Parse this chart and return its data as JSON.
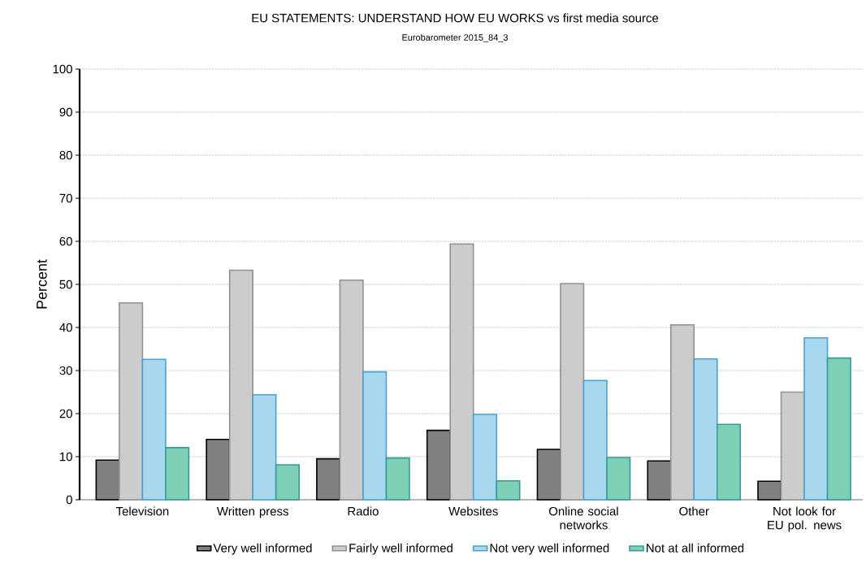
{
  "chart_data": {
    "type": "bar",
    "title": "EU STATEMENTS: UNDERSTAND HOW EU WORKS vs first media source",
    "subtitle": "Eurobarometer 2015_84_3",
    "ylabel": "Percent",
    "categories": [
      "Television",
      "Written press",
      "Radio",
      "Websites",
      "Online social networks",
      "Other",
      "Not look for EU pol. news"
    ],
    "series": [
      {
        "name": "Very well informed",
        "color": "#808080",
        "values": [
          9.2,
          14.0,
          9.5,
          16.1,
          11.7,
          9.0,
          4.3
        ]
      },
      {
        "name": "Fairly well informed",
        "color": "#cccccc",
        "values": [
          45.7,
          53.3,
          51.0,
          59.4,
          50.2,
          40.6,
          25.0
        ]
      },
      {
        "name": "Not very well informed",
        "color": "#a8d8f0",
        "values": [
          32.6,
          24.4,
          29.7,
          19.8,
          27.7,
          32.7,
          37.6
        ]
      },
      {
        "name": "Not at all informed",
        "color": "#7dcfb6",
        "values": [
          12.1,
          8.1,
          9.7,
          4.4,
          9.8,
          17.5,
          32.9
        ]
      }
    ],
    "ylim": [
      0,
      100
    ],
    "yticks": [
      0,
      10,
      20,
      30,
      40,
      50,
      60,
      70,
      80,
      90,
      100
    ],
    "grid": "y",
    "legend": "bottom"
  }
}
